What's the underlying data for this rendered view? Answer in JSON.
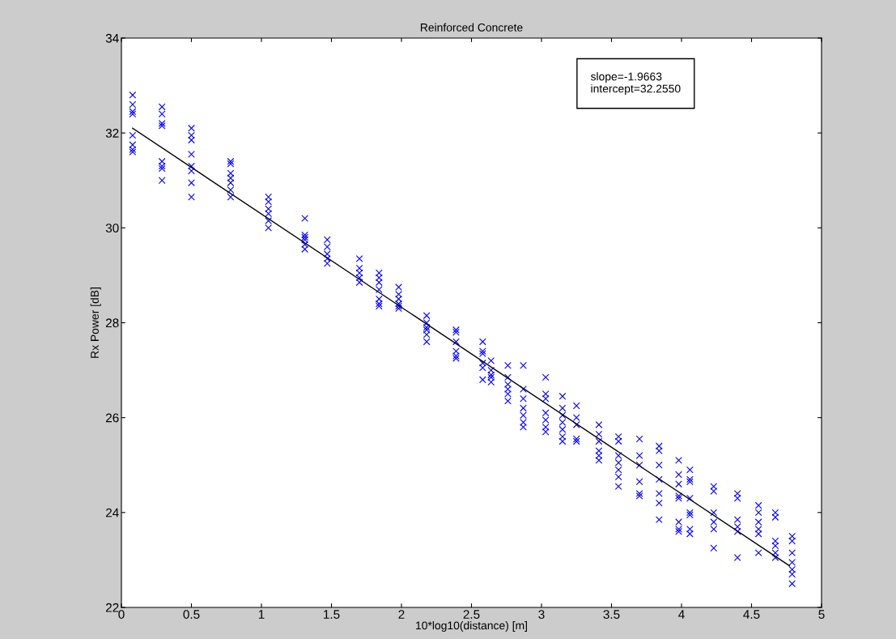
{
  "chart_data": {
    "type": "scatter",
    "title": "Reinforced Concrete",
    "xlabel": "10*log10(distance) [m]",
    "ylabel": "Rx Power [dB]",
    "xlim": [
      0,
      5
    ],
    "xticks": [
      0,
      0.5,
      1,
      1.5,
      2,
      2.5,
      3,
      3.5,
      4,
      4.5,
      5
    ],
    "ylim": [
      22,
      34
    ],
    "yticks": [
      22,
      24,
      26,
      28,
      30,
      32,
      34
    ],
    "grid": false,
    "legend": false,
    "marker": "cross",
    "annotations": [
      "slope=-1.9663\nintercept=32.2550"
    ],
    "series": [
      {
        "color": "#0000ff",
        "x": [
          0.08,
          0.08,
          0.08,
          0.08,
          0.08,
          0.08,
          0.08,
          0.08,
          0.29,
          0.29,
          0.29,
          0.29,
          0.29,
          0.29,
          0.29,
          0.29,
          0.5,
          0.5,
          0.5,
          0.5,
          0.5,
          0.5,
          0.5,
          0.5,
          0.78,
          0.78,
          0.78,
          0.78,
          0.78,
          0.78,
          0.78,
          1.05,
          1.05,
          1.05,
          1.05,
          1.05,
          1.05,
          1.31,
          1.31,
          1.31,
          1.31,
          1.31,
          1.31,
          1.47,
          1.47,
          1.47,
          1.47,
          1.47,
          1.7,
          1.7,
          1.7,
          1.7,
          1.7,
          1.84,
          1.84,
          1.84,
          1.84,
          1.84,
          1.84,
          1.84,
          1.98,
          1.98,
          1.98,
          1.98,
          1.98,
          1.98,
          2.18,
          2.18,
          2.18,
          2.18,
          2.18,
          2.18,
          2.39,
          2.39,
          2.39,
          2.39,
          2.39,
          2.39,
          2.58,
          2.58,
          2.58,
          2.58,
          2.58,
          2.58,
          2.64,
          2.64,
          2.64,
          2.64,
          2.64,
          2.76,
          2.76,
          2.76,
          2.76,
          2.76,
          2.76,
          2.87,
          2.87,
          2.87,
          2.87,
          2.87,
          2.87,
          2.87,
          3.03,
          3.03,
          3.03,
          3.03,
          3.03,
          3.03,
          3.03,
          3.15,
          3.15,
          3.15,
          3.15,
          3.15,
          3.15,
          3.15,
          3.25,
          3.25,
          3.25,
          3.25,
          3.25,
          3.41,
          3.41,
          3.41,
          3.41,
          3.41,
          3.41,
          3.55,
          3.55,
          3.55,
          3.55,
          3.55,
          3.55,
          3.55,
          3.7,
          3.7,
          3.7,
          3.7,
          3.7,
          3.7,
          3.84,
          3.84,
          3.84,
          3.84,
          3.84,
          3.84,
          3.84,
          3.98,
          3.98,
          3.98,
          3.98,
          3.98,
          3.98,
          3.98,
          3.98,
          4.06,
          4.06,
          4.06,
          4.06,
          4.06,
          4.06,
          4.06,
          4.06,
          4.23,
          4.23,
          4.23,
          4.23,
          4.23,
          4.23,
          4.4,
          4.4,
          4.4,
          4.4,
          4.4,
          4.4,
          4.55,
          4.55,
          4.55,
          4.55,
          4.55,
          4.55,
          4.67,
          4.67,
          4.67,
          4.67,
          4.67,
          4.67,
          4.79,
          4.79,
          4.79,
          4.79,
          4.79,
          4.79,
          4.79
        ],
        "values": [
          32.8,
          32.6,
          32.45,
          32.4,
          31.95,
          31.75,
          31.65,
          31.6,
          32.55,
          32.4,
          32.2,
          32.15,
          31.4,
          31.3,
          31.25,
          31.0,
          32.1,
          31.95,
          31.85,
          31.55,
          31.3,
          31.2,
          30.95,
          30.65,
          31.4,
          31.35,
          31.15,
          31.05,
          30.95,
          30.8,
          30.65,
          30.65,
          30.55,
          30.4,
          30.3,
          30.15,
          30.0,
          30.2,
          29.85,
          29.8,
          29.75,
          29.65,
          29.55,
          29.75,
          29.6,
          29.45,
          29.35,
          29.25,
          29.35,
          29.15,
          29.05,
          28.95,
          28.85,
          29.05,
          28.95,
          28.85,
          28.7,
          28.5,
          28.4,
          28.35,
          28.75,
          28.6,
          28.5,
          28.4,
          28.35,
          28.3,
          28.15,
          28.0,
          27.9,
          27.85,
          27.75,
          27.6,
          27.85,
          27.8,
          27.6,
          27.4,
          27.3,
          27.25,
          27.6,
          27.4,
          27.35,
          27.15,
          27.05,
          26.8,
          27.2,
          27.0,
          26.9,
          26.85,
          26.75,
          27.1,
          26.85,
          26.7,
          26.6,
          26.5,
          26.35,
          27.1,
          26.6,
          26.4,
          26.2,
          26.05,
          25.9,
          25.8,
          26.85,
          26.5,
          26.4,
          26.1,
          25.95,
          25.8,
          25.7,
          26.45,
          26.2,
          26.05,
          25.9,
          25.75,
          25.6,
          25.5,
          26.25,
          26.0,
          25.85,
          25.55,
          25.5,
          25.85,
          25.65,
          25.5,
          25.3,
          25.2,
          25.1,
          25.6,
          25.5,
          25.2,
          25.05,
          24.9,
          24.75,
          24.55,
          25.55,
          25.2,
          25.0,
          24.65,
          24.4,
          24.35,
          25.4,
          25.3,
          25.0,
          24.7,
          24.4,
          24.2,
          23.85,
          25.1,
          24.8,
          24.6,
          24.35,
          24.3,
          23.8,
          23.65,
          23.6,
          24.9,
          24.7,
          24.65,
          24.3,
          24.0,
          23.95,
          23.65,
          23.55,
          24.55,
          24.45,
          24.0,
          23.8,
          23.65,
          23.25,
          24.4,
          24.3,
          23.85,
          23.7,
          23.6,
          23.05,
          24.15,
          24.0,
          23.8,
          23.65,
          23.55,
          23.15,
          24.0,
          23.9,
          23.4,
          23.3,
          23.15,
          23.05,
          23.5,
          23.4,
          23.15,
          22.95,
          22.8,
          22.7,
          22.5
        ]
      },
      {
        "type": "line",
        "color": "#000000",
        "marker": "none",
        "line_style": "solid",
        "x": [
          0.08,
          4.77
        ],
        "values": [
          32.1,
          22.88
        ]
      }
    ]
  }
}
